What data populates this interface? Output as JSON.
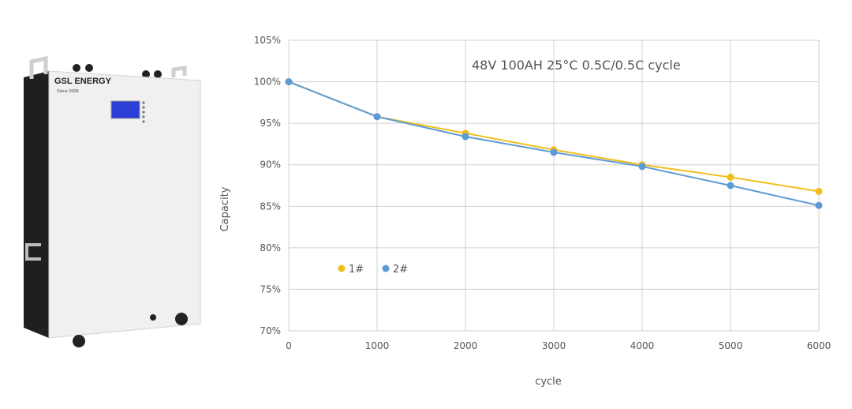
{
  "product": {
    "brand": "GSL ENERGY",
    "since": "Since 2008"
  },
  "chart_data": {
    "type": "line",
    "title": "48V 100AH 25°C 0.5C/0.5C cycle",
    "xlabel": "cycle",
    "ylabel": "Capacity",
    "x": [
      0,
      1000,
      2000,
      3000,
      4000,
      5000,
      6000
    ],
    "xlim": [
      0,
      6000
    ],
    "ylim": [
      70,
      105
    ],
    "yticks": [
      "70%",
      "75%",
      "80%",
      "85%",
      "90%",
      "95%",
      "100%",
      "105%"
    ],
    "xticks": [
      "0",
      "1000",
      "2000",
      "3000",
      "4000",
      "5000",
      "6000"
    ],
    "grid": true,
    "legend_position": "lower-left",
    "series": [
      {
        "name": "1#",
        "color": "#F2BE1D",
        "values": [
          100,
          95.8,
          93.8,
          91.8,
          90.0,
          88.5,
          86.8
        ]
      },
      {
        "name": "2#",
        "color": "#5B9BD5",
        "values": [
          100,
          95.8,
          93.4,
          91.5,
          89.8,
          87.5,
          85.1
        ]
      }
    ]
  }
}
